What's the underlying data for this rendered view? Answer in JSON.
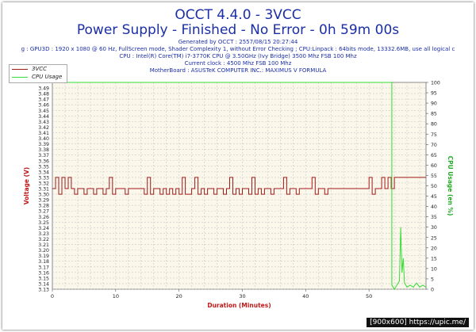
{
  "header": {
    "title": "OCCT 4.4.0 - 3VCC",
    "subtitle": "Power Supply - Finished - No Error - 0h 59m 00s",
    "info_lines": [
      "Generated by OCCT : 2557/08/15 20:27:44",
      "g : GPU3D : 1920 x 1080 @ 60 Hz, FullScreen mode, Shader Complexity 1, without Error Checking ; CPU:Linpack : 64bits mode, 13332.6MB, use all logical c",
      "CPU : Intel(R) Core(TM) i7-3770K CPU @ 3.50GHz (Ivy Bridge) 3500 Mhz FSB 100 Mhz",
      "Current clock : 4500 Mhz FSB 100 Mhz",
      "MotherBoard : ASUSTeK COMPUTER INC.: MAXIMUS V FORMULA"
    ]
  },
  "watermark": "[900x600] https://upic.me/",
  "chart_data": {
    "type": "line",
    "title": "OCCT 4.4.0 - 3VCC",
    "subtitle": "Power Supply - Finished - No Error - 0h 59m 00s",
    "xlabel": "Duration (Minutes)",
    "ylabel": "Voltage (V)",
    "y2label": "CPU Usage (en %)",
    "xlim": [
      0,
      59
    ],
    "ylim": [
      3.13,
      3.5
    ],
    "y2lim": [
      0,
      100
    ],
    "x_ticks": [
      "0",
      "10",
      "20",
      "30",
      "40",
      "50"
    ],
    "y_ticks": [
      "3.13",
      "3.14",
      "3.15",
      "3.16",
      "3.17",
      "3.18",
      "3.19",
      "3.20",
      "3.21",
      "3.22",
      "3.23",
      "3.24",
      "3.25",
      "3.26",
      "3.27",
      "3.28",
      "3.29",
      "3.30",
      "3.31",
      "3.32",
      "3.33",
      "3.34",
      "3.35",
      "3.36",
      "3.37",
      "3.38",
      "3.39",
      "3.40",
      "3.41",
      "3.42",
      "3.43",
      "3.44",
      "3.45",
      "3.46",
      "3.47",
      "3.48",
      "3.49"
    ],
    "y2_ticks": [
      "0",
      "5",
      "10",
      "15",
      "20",
      "25",
      "30",
      "35",
      "40",
      "45",
      "50",
      "55",
      "60",
      "65",
      "70",
      "75",
      "80",
      "85",
      "90",
      "95",
      "100"
    ],
    "grid": true,
    "legend_position": "top-left",
    "colors": {
      "3VCC": "#a01818",
      "CPU Usage": "#33dd33",
      "plot_bg": "#fbf7ea",
      "grid": "#c8c8c8"
    },
    "series": [
      {
        "name": "3VCC",
        "axis": "left",
        "x": [
          0,
          0.5,
          1,
          1.5,
          2,
          2.5,
          3,
          3.5,
          4,
          4.5,
          5,
          5.5,
          6,
          6.5,
          7,
          7.5,
          8,
          8.5,
          9,
          9.5,
          10,
          10.5,
          11,
          11.5,
          12,
          12.5,
          13,
          13.5,
          14,
          14.5,
          15,
          15.5,
          16,
          16.5,
          17,
          17.5,
          18,
          18.5,
          19,
          19.5,
          20,
          20.5,
          21,
          21.5,
          22,
          22.5,
          23,
          23.5,
          24,
          24.5,
          25,
          25.5,
          26,
          26.5,
          27,
          27.5,
          28,
          28.5,
          29,
          29.5,
          30,
          30.5,
          31,
          31.5,
          32,
          32.5,
          33,
          33.5,
          34,
          34.5,
          35,
          35.5,
          36,
          36.5,
          37,
          37.5,
          38,
          38.5,
          39,
          39.5,
          40,
          40.5,
          41,
          41.5,
          42,
          42.5,
          43,
          43.5,
          44,
          44.5,
          45,
          45.5,
          46,
          46.5,
          47,
          47.5,
          48,
          48.5,
          49,
          49.5,
          50,
          50.5,
          51,
          51.5,
          52,
          52.5,
          53,
          53.5,
          54,
          54.5,
          55,
          55.5,
          56,
          56.5,
          57,
          57.5,
          58,
          58.5,
          59
        ],
        "y": [
          3.31,
          3.33,
          3.3,
          3.33,
          3.31,
          3.33,
          3.31,
          3.3,
          3.31,
          3.31,
          3.3,
          3.31,
          3.31,
          3.3,
          3.31,
          3.31,
          3.3,
          3.31,
          3.33,
          3.3,
          3.31,
          3.31,
          3.31,
          3.3,
          3.31,
          3.31,
          3.31,
          3.31,
          3.31,
          3.3,
          3.33,
          3.3,
          3.31,
          3.31,
          3.3,
          3.31,
          3.3,
          3.31,
          3.3,
          3.31,
          3.3,
          3.33,
          3.3,
          3.3,
          3.31,
          3.33,
          3.3,
          3.31,
          3.3,
          3.31,
          3.31,
          3.3,
          3.31,
          3.31,
          3.3,
          3.31,
          3.33,
          3.3,
          3.31,
          3.3,
          3.31,
          3.31,
          3.3,
          3.33,
          3.3,
          3.31,
          3.3,
          3.31,
          3.31,
          3.3,
          3.31,
          3.31,
          3.31,
          3.33,
          3.3,
          3.31,
          3.31,
          3.3,
          3.31,
          3.31,
          3.31,
          3.31,
          3.33,
          3.3,
          3.31,
          3.31,
          3.3,
          3.31,
          3.31,
          3.31,
          3.31,
          3.31,
          3.31,
          3.31,
          3.31,
          3.31,
          3.31,
          3.31,
          3.31,
          3.31,
          3.33,
          3.3,
          3.31,
          3.31,
          3.33,
          3.31,
          3.33,
          3.31,
          3.33,
          3.33,
          3.33,
          3.33,
          3.33,
          3.33,
          3.33,
          3.33,
          3.33,
          3.33,
          3.33
        ]
      },
      {
        "name": "CPU Usage",
        "axis": "right",
        "x": [
          0,
          53.6,
          53.6,
          54.0,
          54.4,
          54.8,
          55.0,
          55.2,
          55.4,
          55.6,
          56.0,
          56.5,
          57.0,
          57.5,
          58.0,
          58.5,
          59.0
        ],
        "y": [
          100,
          100,
          2,
          0,
          2,
          4,
          30,
          8,
          15,
          3,
          1,
          2,
          1,
          3,
          1,
          2,
          1
        ]
      }
    ]
  }
}
